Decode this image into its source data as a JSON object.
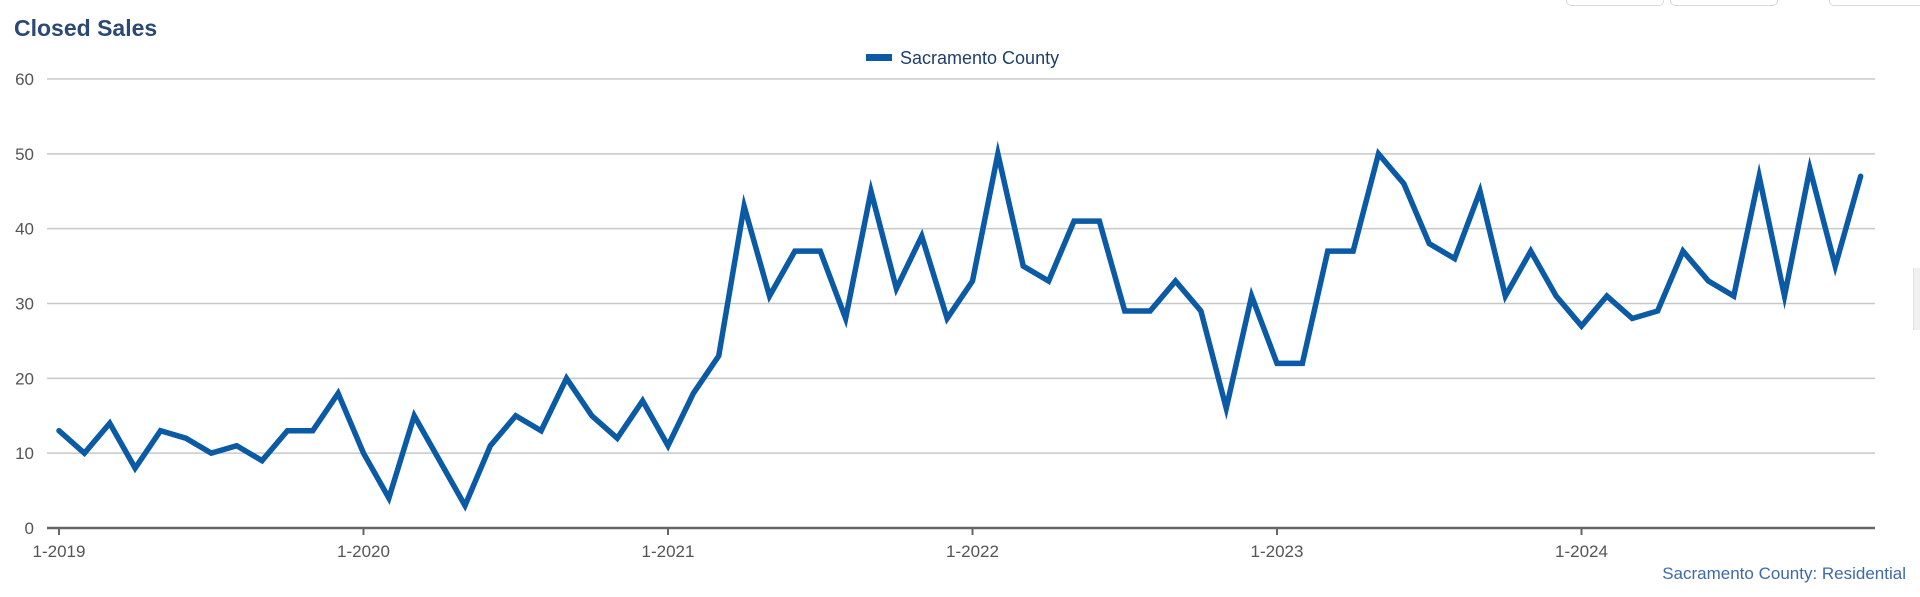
{
  "chart_data": {
    "type": "line",
    "title": "Closed Sales",
    "source_label": "Sacramento County: Residential",
    "x_tick_labels": [
      "1-2019",
      "1-2020",
      "1-2021",
      "1-2022",
      "1-2023",
      "1-2024"
    ],
    "ylim": [
      0,
      60
    ],
    "y_ticks": [
      0,
      10,
      20,
      30,
      40,
      50,
      60
    ],
    "grid": true,
    "legend_position": "top-center",
    "colors": {
      "line": "#0a5aa5",
      "grid": "#c8c8c8",
      "axis": "#666666"
    },
    "series": [
      {
        "name": "Sacramento County",
        "start": "1-2019",
        "frequency": "monthly",
        "values": [
          13,
          10,
          14,
          8,
          13,
          12,
          10,
          11,
          9,
          13,
          13,
          18,
          10,
          4,
          15,
          9,
          3,
          11,
          15,
          13,
          20,
          15,
          12,
          17,
          11,
          18,
          23,
          43,
          31,
          37,
          37,
          28,
          45,
          32,
          39,
          28,
          33,
          50,
          35,
          33,
          41,
          41,
          29,
          29,
          33,
          29,
          16,
          31,
          22,
          22,
          37,
          37,
          50,
          46,
          38,
          36,
          45,
          31,
          37,
          31,
          27,
          31,
          28,
          29,
          37,
          33,
          31,
          47,
          31,
          48,
          35,
          47
        ]
      }
    ]
  }
}
